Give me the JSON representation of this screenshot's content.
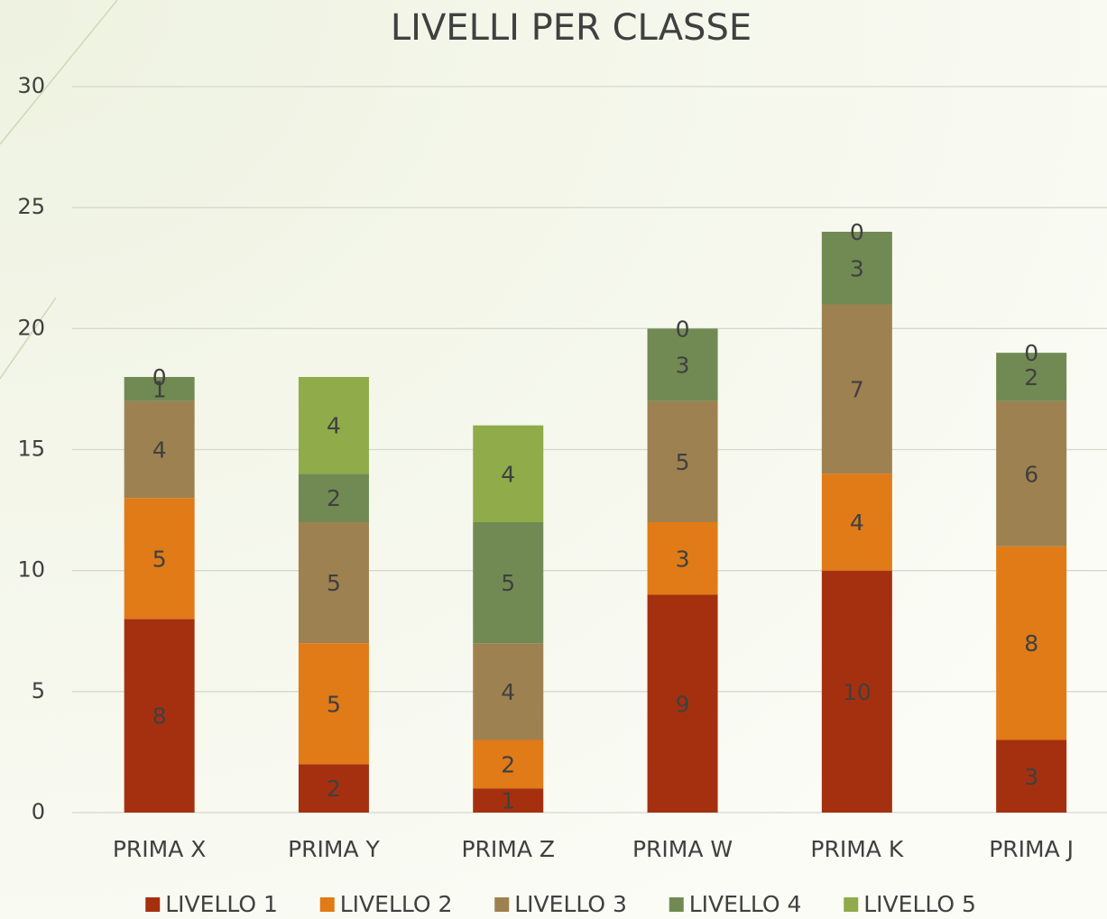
{
  "chart_data": {
    "type": "stacked_bar",
    "title": "LIVELLI PER CLASSE",
    "categories": [
      "PRIMA X",
      "PRIMA Y",
      "PRIMA Z",
      "PRIMA W",
      "PRIMA K",
      "PRIMA J"
    ],
    "series": [
      {
        "name": "LIVELLO 1",
        "color": "#a5300f",
        "values": [
          8,
          2,
          1,
          9,
          10,
          3
        ]
      },
      {
        "name": "LIVELLO 2",
        "color": "#e07b17",
        "values": [
          5,
          5,
          2,
          3,
          4,
          8
        ]
      },
      {
        "name": "LIVELLO 3",
        "color": "#9e8150",
        "values": [
          4,
          5,
          4,
          5,
          7,
          6
        ]
      },
      {
        "name": "LIVELLO 4",
        "color": "#718a53",
        "values": [
          1,
          2,
          5,
          3,
          3,
          2
        ]
      },
      {
        "name": "LIVELLO 5",
        "color": "#8fab4a",
        "values": [
          0,
          4,
          4,
          0,
          0,
          0
        ]
      }
    ],
    "ylim": [
      0,
      30
    ],
    "yticks": [
      0,
      5,
      10,
      15,
      20,
      25,
      30
    ],
    "grid": true,
    "legend": "bottom"
  }
}
